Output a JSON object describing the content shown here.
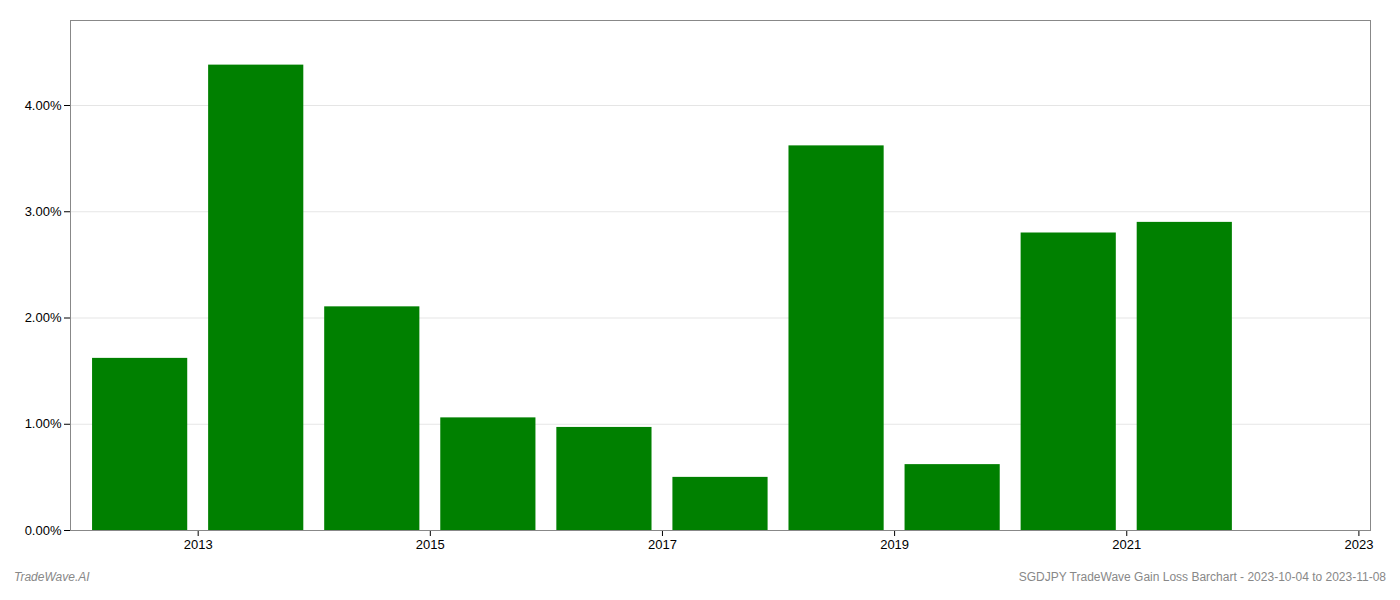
{
  "chart_data": {
    "type": "bar",
    "x": [
      2013,
      2014,
      2015,
      2016,
      2017,
      2018,
      2019,
      2020,
      2021,
      2022
    ],
    "values": [
      0.0162,
      0.0438,
      0.02105,
      0.0106,
      0.0097,
      0.005,
      0.0362,
      0.0062,
      0.028,
      0.029
    ],
    "color": "#008000",
    "xlim": [
      2012.4,
      2023.6
    ],
    "xticks": [
      {
        "value": 2013.5,
        "label": "2013"
      },
      {
        "value": 2015.5,
        "label": "2015"
      },
      {
        "value": 2017.5,
        "label": "2017"
      },
      {
        "value": 2019.5,
        "label": "2019"
      },
      {
        "value": 2021.5,
        "label": "2021"
      },
      {
        "value": 2023.5,
        "label": "2023"
      }
    ],
    "ylim": [
      0,
      0.048
    ],
    "yticks": [
      {
        "value": 0.0,
        "label": "0.00%"
      },
      {
        "value": 0.01,
        "label": "1.00%"
      },
      {
        "value": 0.02,
        "label": "2.00%"
      },
      {
        "value": 0.03,
        "label": "3.00%"
      },
      {
        "value": 0.04,
        "label": "4.00%"
      }
    ],
    "grid": true,
    "annotations": [
      "TradeWave.AI",
      "SGDJPY TradeWave Gain Loss Barchart - 2023-10-04 to 2023-11-08"
    ]
  }
}
